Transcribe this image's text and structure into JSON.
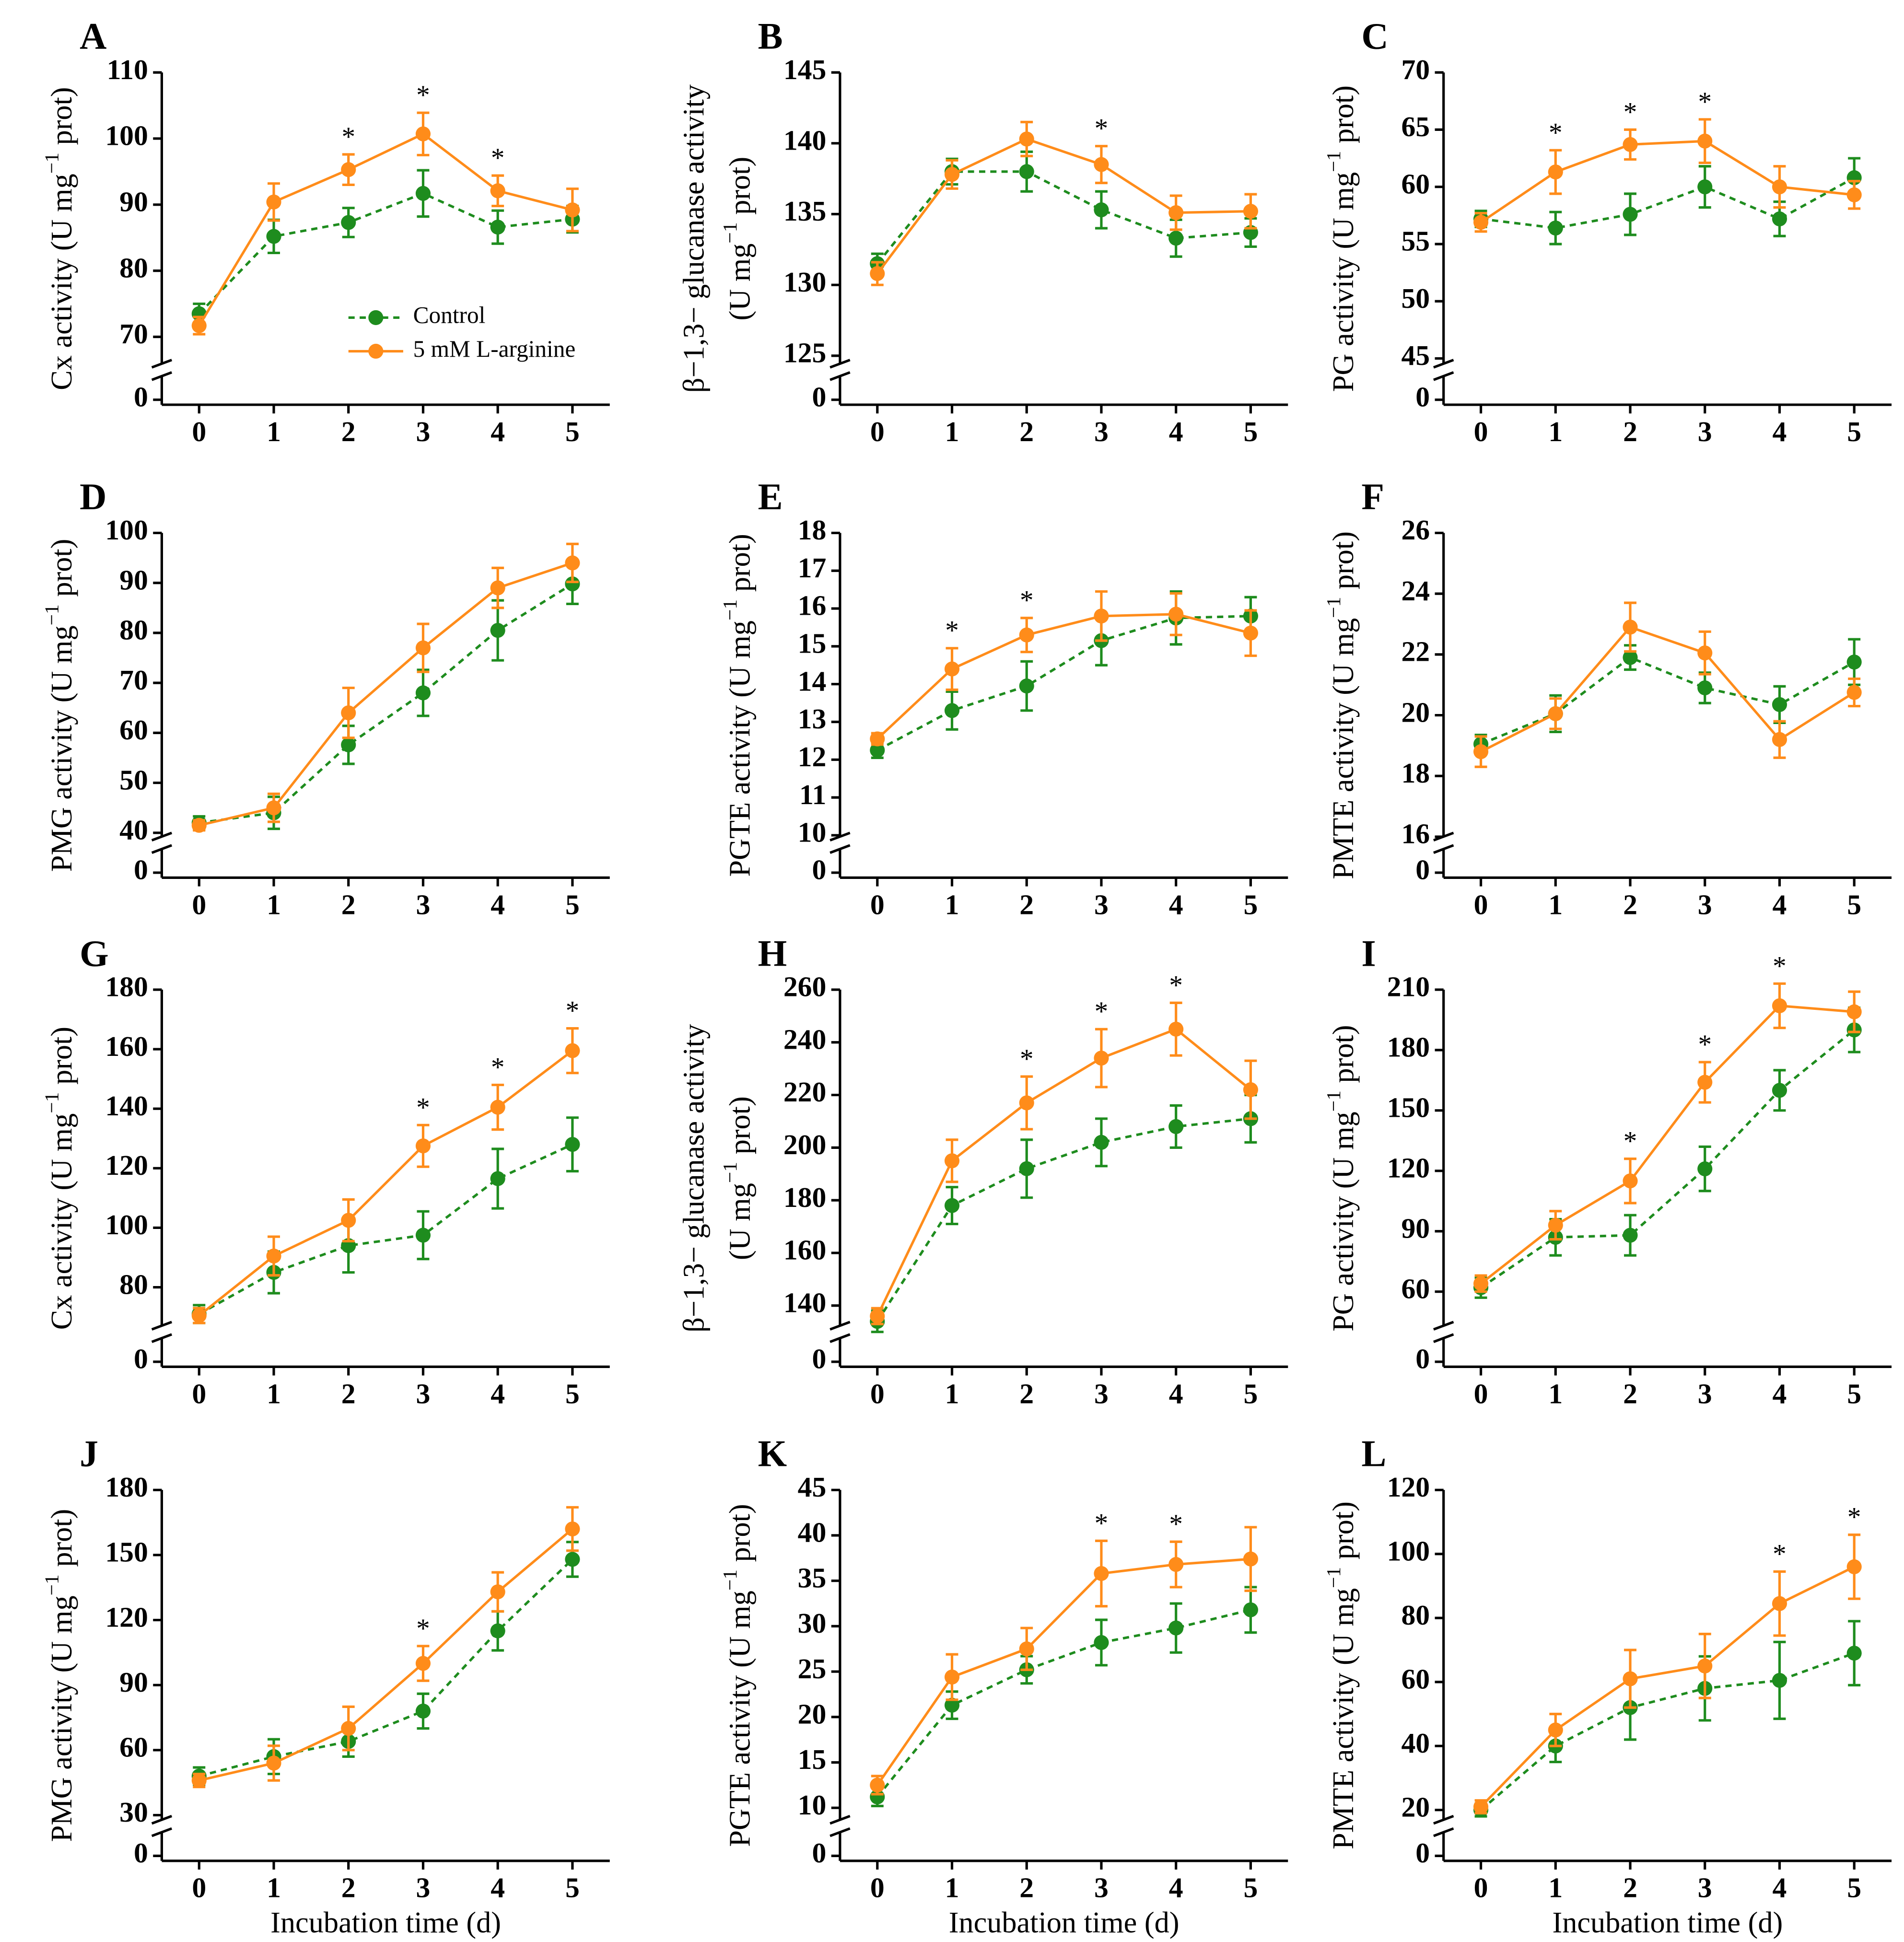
{
  "chart_data": [
    {
      "type": "line",
      "label": "A",
      "ylabel": [
        [
          "Cx activity (U mg",
          "−1",
          " prot)"
        ]
      ],
      "x": [
        0,
        1,
        2,
        3,
        4,
        5
      ],
      "xticks": [
        0,
        1,
        2,
        3,
        4,
        5
      ],
      "xlim": [
        -0.5,
        5.5
      ],
      "ylim": [
        65,
        110
      ],
      "yticks": [
        70,
        80,
        90,
        100,
        110
      ],
      "y_break_tick": 0,
      "legend": "bottom",
      "series": [
        {
          "name": "Control",
          "color": "#1e8c1e",
          "line_style": "dashed",
          "values": [
            73.5,
            85.2,
            87.3,
            91.7,
            86.6,
            87.8
          ],
          "errors": [
            1.5,
            2.5,
            2.2,
            3.5,
            2.5,
            2
          ]
        },
        {
          "name": "5 mM L-arginine",
          "color": "#ff8c1a",
          "line_style": "solid",
          "values": [
            71.7,
            90.4,
            95.3,
            100.7,
            92.1,
            89.2
          ],
          "errors": [
            1.3,
            2.8,
            2.3,
            3.2,
            2.3,
            3.2
          ]
        }
      ],
      "significance": [
        {
          "x": 2,
          "label": "*"
        },
        {
          "x": 3,
          "label": "*"
        },
        {
          "x": 4,
          "label": "*"
        }
      ]
    },
    {
      "type": "line",
      "label": "B",
      "ylabel": [
        [
          "β−1,3− glucanase activity"
        ],
        [
          "(U mg",
          "−1",
          " prot)"
        ]
      ],
      "x": [
        0,
        1,
        2,
        3,
        4,
        5
      ],
      "xticks": [
        0,
        1,
        2,
        3,
        4,
        5
      ],
      "xlim": [
        -0.5,
        5.5
      ],
      "ylim": [
        124,
        145
      ],
      "yticks": [
        125,
        130,
        135,
        140,
        145
      ],
      "y_break_tick": 0,
      "series": [
        {
          "color": "#1e8c1e",
          "line_style": "dashed",
          "values": [
            131.5,
            138,
            138,
            135.3,
            133.3,
            133.7
          ],
          "errors": [
            0.7,
            0.9,
            1.4,
            1.3,
            1.3,
            1
          ]
        },
        {
          "color": "#ff8c1a",
          "line_style": "solid",
          "values": [
            130.8,
            137.8,
            140.3,
            138.5,
            135.1,
            135.2
          ],
          "errors": [
            0.8,
            1,
            1.2,
            1.3,
            1.2,
            1.2
          ]
        }
      ],
      "significance": [
        {
          "x": 3,
          "label": "*"
        }
      ]
    },
    {
      "type": "line",
      "label": "C",
      "ylabel": [
        [
          "PG activity (U mg",
          "−1",
          " prot)"
        ]
      ],
      "x": [
        0,
        1,
        2,
        3,
        4,
        5
      ],
      "xticks": [
        0,
        1,
        2,
        3,
        4,
        5
      ],
      "xlim": [
        -0.5,
        5.5
      ],
      "ylim": [
        44,
        70
      ],
      "yticks": [
        45,
        50,
        55,
        60,
        65,
        70
      ],
      "y_break_tick": 0,
      "series": [
        {
          "color": "#1e8c1e",
          "line_style": "dashed",
          "values": [
            57.2,
            56.4,
            57.6,
            60,
            57.2,
            60.8
          ],
          "errors": [
            0.7,
            1.4,
            1.8,
            1.8,
            1.5,
            1.7
          ]
        },
        {
          "color": "#ff8c1a",
          "line_style": "solid",
          "values": [
            56.9,
            61.3,
            63.7,
            64,
            60,
            59.3
          ],
          "errors": [
            0.8,
            1.9,
            1.3,
            1.9,
            1.8,
            1.2
          ]
        }
      ],
      "significance": [
        {
          "x": 1,
          "label": "*"
        },
        {
          "x": 2,
          "label": "*"
        },
        {
          "x": 3,
          "label": "*"
        }
      ]
    },
    {
      "type": "line",
      "label": "D",
      "ylabel": [
        [
          "PMG activity (U mg",
          "−1",
          " prot)"
        ]
      ],
      "x": [
        0,
        1,
        2,
        3,
        4,
        5
      ],
      "xticks": [
        0,
        1,
        2,
        3,
        4,
        5
      ],
      "xlim": [
        -0.5,
        5.5
      ],
      "ylim": [
        38,
        100
      ],
      "yticks": [
        40,
        50,
        60,
        70,
        80,
        90,
        100
      ],
      "y_break_tick": 0,
      "series": [
        {
          "color": "#1e8c1e",
          "line_style": "dashed",
          "values": [
            42,
            44,
            57.6,
            68,
            80.5,
            89.8
          ],
          "errors": [
            1.3,
            3.2,
            3.8,
            4.6,
            6,
            4
          ]
        },
        {
          "color": "#ff8c1a",
          "line_style": "solid",
          "values": [
            41.5,
            45,
            64,
            77,
            89,
            94
          ],
          "errors": [
            1,
            2.8,
            5,
            4.8,
            4,
            3.8
          ]
        }
      ],
      "significance": []
    },
    {
      "type": "line",
      "label": "E",
      "ylabel": [
        [
          "PGTE activity (U mg",
          "−1",
          " prot)"
        ]
      ],
      "x": [
        0,
        1,
        2,
        3,
        4,
        5
      ],
      "xticks": [
        0,
        1,
        2,
        3,
        4,
        5
      ],
      "xlim": [
        -0.5,
        5.5
      ],
      "ylim": [
        9.8,
        18
      ],
      "yticks": [
        10,
        11,
        12,
        13,
        14,
        15,
        16,
        17,
        18
      ],
      "y_break_tick": 0,
      "series": [
        {
          "color": "#1e8c1e",
          "line_style": "dashed",
          "values": [
            12.25,
            13.3,
            13.95,
            15.15,
            15.75,
            15.8
          ],
          "errors": [
            0.2,
            0.5,
            0.65,
            0.65,
            0.7,
            0.5
          ]
        },
        {
          "color": "#ff8c1a",
          "line_style": "solid",
          "values": [
            12.55,
            14.4,
            15.3,
            15.8,
            15.85,
            15.35
          ],
          "errors": [
            0.15,
            0.55,
            0.45,
            0.65,
            0.55,
            0.6
          ]
        }
      ],
      "significance": [
        {
          "x": 1,
          "label": "*"
        },
        {
          "x": 2,
          "label": "*"
        }
      ]
    },
    {
      "type": "line",
      "label": "F",
      "ylabel": [
        [
          "PMTE activity (U mg",
          "−1",
          " prot)"
        ]
      ],
      "x": [
        0,
        1,
        2,
        3,
        4,
        5
      ],
      "xticks": [
        0,
        1,
        2,
        3,
        4,
        5
      ],
      "xlim": [
        -0.5,
        5.5
      ],
      "ylim": [
        15.8,
        26
      ],
      "yticks": [
        16,
        18,
        20,
        22,
        24,
        26
      ],
      "y_break_tick": 0,
      "series": [
        {
          "color": "#1e8c1e",
          "line_style": "dashed",
          "values": [
            19.05,
            20.05,
            21.9,
            20.9,
            20.35,
            21.75
          ],
          "errors": [
            0.3,
            0.6,
            0.4,
            0.5,
            0.6,
            0.75
          ]
        },
        {
          "color": "#ff8c1a",
          "line_style": "solid",
          "values": [
            18.8,
            20.05,
            22.9,
            22.05,
            19.2,
            20.75
          ],
          "errors": [
            0.5,
            0.5,
            0.8,
            0.7,
            0.6,
            0.45
          ]
        }
      ],
      "significance": []
    },
    {
      "type": "line",
      "label": "G",
      "ylabel": [
        [
          "Cx activity (U mg",
          "−1",
          " prot)"
        ]
      ],
      "x": [
        0,
        1,
        2,
        3,
        4,
        5
      ],
      "xticks": [
        0,
        1,
        2,
        3,
        4,
        5
      ],
      "xlim": [
        -0.5,
        5.5
      ],
      "ylim": [
        65,
        180
      ],
      "yticks": [
        80,
        100,
        120,
        140,
        160,
        180
      ],
      "y_break_tick": 0,
      "series": [
        {
          "color": "#1e8c1e",
          "line_style": "dashed",
          "values": [
            71,
            85,
            94,
            97.5,
            116.5,
            128
          ],
          "errors": [
            3,
            7,
            9,
            8,
            10,
            9
          ]
        },
        {
          "color": "#ff8c1a",
          "line_style": "solid",
          "values": [
            70.5,
            90.5,
            102.5,
            127.5,
            140.5,
            159.5
          ],
          "errors": [
            2.5,
            6.5,
            7,
            7,
            7.5,
            7.5
          ]
        }
      ],
      "significance": [
        {
          "x": 3,
          "label": "*"
        },
        {
          "x": 4,
          "label": "*"
        },
        {
          "x": 5,
          "label": "*"
        }
      ]
    },
    {
      "type": "line",
      "label": "H",
      "ylabel": [
        [
          "β−1,3− glucanase activity"
        ],
        [
          "(U mg",
          "−1",
          " prot)"
        ]
      ],
      "x": [
        0,
        1,
        2,
        3,
        4,
        5
      ],
      "xticks": [
        0,
        1,
        2,
        3,
        4,
        5
      ],
      "xlim": [
        -0.5,
        5.5
      ],
      "ylim": [
        130,
        260
      ],
      "yticks": [
        140,
        160,
        180,
        200,
        220,
        240,
        260
      ],
      "y_break_tick": 0,
      "series": [
        {
          "color": "#1e8c1e",
          "line_style": "dashed",
          "values": [
            134,
            178,
            192,
            202,
            208,
            211
          ],
          "errors": [
            4,
            7,
            11,
            9,
            8,
            9
          ]
        },
        {
          "color": "#ff8c1a",
          "line_style": "solid",
          "values": [
            136,
            195,
            217,
            234,
            245,
            222
          ],
          "errors": [
            3,
            8,
            10,
            11,
            10,
            11
          ]
        }
      ],
      "significance": [
        {
          "x": 2,
          "label": "*"
        },
        {
          "x": 3,
          "label": "*"
        },
        {
          "x": 4,
          "label": "*"
        }
      ]
    },
    {
      "type": "line",
      "label": "I",
      "ylabel": [
        [
          "PG activity (U mg",
          "−1",
          " prot)"
        ]
      ],
      "x": [
        0,
        1,
        2,
        3,
        4,
        5
      ],
      "xticks": [
        0,
        1,
        2,
        3,
        4,
        5
      ],
      "xlim": [
        -0.5,
        5.5
      ],
      "ylim": [
        40,
        210
      ],
      "yticks": [
        60,
        90,
        120,
        150,
        180,
        210
      ],
      "y_break_tick": 0,
      "series": [
        {
          "color": "#1e8c1e",
          "line_style": "dashed",
          "values": [
            62,
            87,
            88,
            121,
            160,
            190
          ],
          "errors": [
            5,
            9,
            10,
            11,
            10,
            11
          ]
        },
        {
          "color": "#ff8c1a",
          "line_style": "solid",
          "values": [
            64,
            93,
            115,
            164,
            202,
            199
          ],
          "errors": [
            4,
            7,
            11,
            10,
            11,
            10
          ]
        }
      ],
      "significance": [
        {
          "x": 2,
          "label": "*"
        },
        {
          "x": 3,
          "label": "*"
        },
        {
          "x": 4,
          "label": "*"
        }
      ]
    },
    {
      "type": "line",
      "label": "J",
      "ylabel": [
        [
          "PMG activity (U mg",
          "−1",
          " prot)"
        ]
      ],
      "xlabel": "Incubation time (d)",
      "x": [
        0,
        1,
        2,
        3,
        4,
        5
      ],
      "xticks": [
        0,
        1,
        2,
        3,
        4,
        5
      ],
      "xlim": [
        -0.5,
        5.5
      ],
      "ylim": [
        25,
        180
      ],
      "yticks": [
        30,
        60,
        90,
        120,
        150,
        180
      ],
      "y_break_tick": 0,
      "series": [
        {
          "color": "#1e8c1e",
          "line_style": "dashed",
          "values": [
            48,
            57,
            64,
            78,
            115,
            148
          ],
          "errors": [
            4,
            8,
            7,
            8,
            9,
            8
          ]
        },
        {
          "color": "#ff8c1a",
          "line_style": "solid",
          "values": [
            46,
            54,
            70,
            100,
            133,
            162
          ],
          "errors": [
            3,
            8,
            10,
            8,
            9,
            10
          ]
        }
      ],
      "significance": [
        {
          "x": 3,
          "label": "*"
        }
      ]
    },
    {
      "type": "line",
      "label": "K",
      "ylabel": [
        [
          "PGTE activity (U mg",
          "−1",
          " prot)"
        ]
      ],
      "xlabel": "Incubation time (d)",
      "x": [
        0,
        1,
        2,
        3,
        4,
        5
      ],
      "xticks": [
        0,
        1,
        2,
        3,
        4,
        5
      ],
      "xlim": [
        -0.5,
        5.5
      ],
      "ylim": [
        8,
        45
      ],
      "yticks": [
        10,
        15,
        20,
        25,
        30,
        35,
        40,
        45
      ],
      "y_break_tick": 0,
      "series": [
        {
          "color": "#1e8c1e",
          "line_style": "dashed",
          "values": [
            11.2,
            21.3,
            25.2,
            28.2,
            29.8,
            31.8
          ],
          "errors": [
            1,
            1.5,
            1.5,
            2.5,
            2.7,
            2.5
          ]
        },
        {
          "color": "#ff8c1a",
          "line_style": "solid",
          "values": [
            12.5,
            24.4,
            27.5,
            35.8,
            36.8,
            37.4
          ],
          "errors": [
            1,
            2.5,
            2.3,
            3.6,
            2.5,
            3.5
          ]
        }
      ],
      "significance": [
        {
          "x": 3,
          "label": "*"
        },
        {
          "x": 4,
          "label": "*"
        }
      ]
    },
    {
      "type": "line",
      "label": "L",
      "ylabel": [
        [
          "PMTE activity (U mg",
          "−1",
          " prot)"
        ]
      ],
      "xlabel": "Incubation time (d)",
      "x": [
        0,
        1,
        2,
        3,
        4,
        5
      ],
      "xticks": [
        0,
        1,
        2,
        3,
        4,
        5
      ],
      "xlim": [
        -0.5,
        5.5
      ],
      "ylim": [
        15,
        120
      ],
      "yticks": [
        20,
        40,
        60,
        80,
        100,
        120
      ],
      "y_break_tick": 0,
      "series": [
        {
          "color": "#1e8c1e",
          "line_style": "dashed",
          "values": [
            20,
            40,
            52,
            58,
            60.5,
            69
          ],
          "errors": [
            2,
            5,
            10,
            10,
            12,
            10
          ]
        },
        {
          "color": "#ff8c1a",
          "line_style": "solid",
          "values": [
            21,
            45,
            61,
            65,
            84.5,
            96
          ],
          "errors": [
            2,
            5,
            9,
            10,
            10,
            10
          ]
        }
      ],
      "significance": [
        {
          "x": 4,
          "label": "*"
        },
        {
          "x": 5,
          "label": "*"
        }
      ]
    }
  ]
}
